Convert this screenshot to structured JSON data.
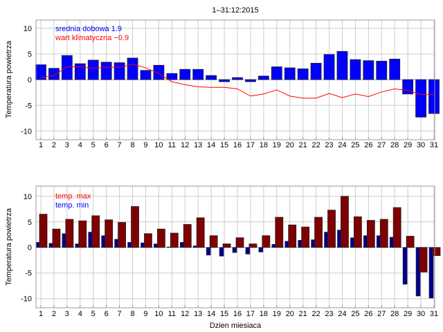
{
  "chart_data": [
    {
      "type": "bar",
      "title": "1–31:12:2015",
      "ylabel": "Temperatura powietrza",
      "xlabel": "",
      "x": [
        1,
        2,
        3,
        4,
        5,
        6,
        7,
        8,
        9,
        10,
        11,
        12,
        13,
        14,
        15,
        16,
        17,
        18,
        19,
        20,
        21,
        22,
        23,
        24,
        25,
        26,
        27,
        28,
        29,
        30,
        31
      ],
      "ylim": [
        -11.7,
        11.6
      ],
      "yticks": [
        10,
        5,
        0,
        -5,
        -10
      ],
      "grid": true,
      "legend_placement": "top-left",
      "annotations": [
        {
          "text": "srednia dobowa 1.9",
          "color": "#0000ff"
        },
        {
          "text": "wart klimatyczna −0.9",
          "color": "#ff0000"
        }
      ],
      "series": [
        {
          "name": "srednia dobowa",
          "kind": "bar",
          "color": "#0000ff",
          "values": [
            2.9,
            2.2,
            4.7,
            3.1,
            3.8,
            3.4,
            3.3,
            4.2,
            1.8,
            2.8,
            1.2,
            2.0,
            2.0,
            0.8,
            -0.4,
            0.4,
            -0.4,
            0.7,
            2.5,
            2.3,
            2.1,
            3.2,
            4.9,
            5.5,
            3.9,
            3.7,
            3.6,
            4.0,
            -2.8,
            -7.3,
            -6.6
          ]
        },
        {
          "name": "wart klimatyczna",
          "kind": "line",
          "color": "#ff0000",
          "values": [
            0.4,
            0.8,
            2.5,
            2.5,
            2.2,
            2.4,
            2.4,
            3.0,
            2.3,
            1.2,
            -0.4,
            -1.0,
            -1.4,
            -1.5,
            -1.5,
            -1.8,
            -3.2,
            -2.8,
            -2.0,
            -3.2,
            -3.6,
            -3.6,
            -2.7,
            -3.5,
            -2.8,
            -3.3,
            -2.4,
            -1.8,
            -2.1,
            -2.9,
            -2.9
          ]
        }
      ]
    },
    {
      "type": "bar",
      "title": "",
      "ylabel": "Temperatura powietrza",
      "xlabel": "Dzien miesiaca",
      "x": [
        1,
        2,
        3,
        4,
        5,
        6,
        7,
        8,
        9,
        10,
        11,
        12,
        13,
        14,
        15,
        16,
        17,
        18,
        19,
        20,
        21,
        22,
        23,
        24,
        25,
        26,
        27,
        28,
        29,
        30,
        31
      ],
      "ylim": [
        -11.8,
        12.0
      ],
      "yticks": [
        10,
        5,
        0,
        -5,
        -10
      ],
      "grid": true,
      "legend_placement": "top-left",
      "annotations": [
        {
          "text": "temp. max",
          "color": "#ff0000"
        },
        {
          "text": "temp. min",
          "color": "#0000ff"
        }
      ],
      "series": [
        {
          "name": "temp. min",
          "kind": "bar",
          "color": "#00008b",
          "values": [
            1.0,
            0.8,
            2.7,
            0.7,
            3.0,
            2.3,
            1.6,
            1.0,
            0.9,
            0.7,
            0.1,
            1.0,
            0.3,
            -1.5,
            -1.7,
            -1.0,
            -1.3,
            -0.9,
            0.6,
            1.2,
            1.4,
            1.5,
            3.0,
            3.4,
            1.9,
            2.3,
            2.3,
            2.0,
            -7.2,
            -9.5,
            -9.9
          ]
        },
        {
          "name": "temp. max",
          "kind": "bar",
          "color": "#7f0000",
          "values": [
            6.5,
            3.6,
            5.5,
            5.2,
            6.2,
            5.4,
            4.9,
            8.0,
            2.7,
            3.6,
            2.8,
            4.5,
            5.8,
            2.3,
            0.7,
            1.9,
            0.7,
            2.3,
            5.9,
            4.4,
            4.0,
            5.9,
            7.3,
            10.0,
            6.0,
            5.3,
            5.5,
            7.8,
            2.2,
            -4.8,
            -1.6
          ]
        }
      ]
    }
  ]
}
